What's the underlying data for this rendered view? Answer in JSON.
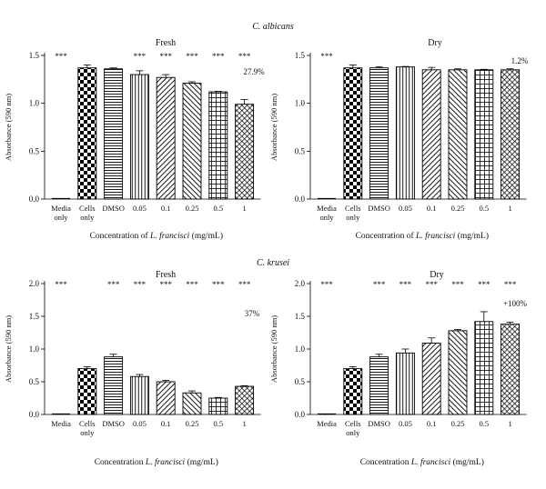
{
  "organisms": [
    {
      "genus": "C.",
      "species": "albicans"
    },
    {
      "genus": "C.",
      "species": "krusei"
    }
  ],
  "chart_data": [
    {
      "type": "bar",
      "organism": "C. albicans",
      "title": "Fresh",
      "ylabel": "Absorbance (590 nm)",
      "xlabel_prefix": "Concentration of ",
      "xlabel_italic": "L. francisci",
      "xlabel_suffix": " (mg/mL)",
      "ylim": [
        0,
        1.5
      ],
      "yticks": [
        "0.0",
        "0.5",
        "1.0",
        "1.5"
      ],
      "ytick_values": [
        0,
        0.5,
        1.0,
        1.5
      ],
      "categories": [
        [
          "Media",
          "only"
        ],
        [
          "Cells",
          "only"
        ],
        [
          "DMSO"
        ],
        [
          "0.05"
        ],
        [
          "0.1"
        ],
        [
          "0.25"
        ],
        [
          "0.5"
        ],
        [
          "1"
        ]
      ],
      "values": [
        0.0,
        1.37,
        1.36,
        1.3,
        1.27,
        1.21,
        1.12,
        0.99
      ],
      "errors": [
        0.005,
        0.03,
        0.01,
        0.04,
        0.03,
        0.015,
        0.005,
        0.05
      ],
      "patterns": [
        "none",
        "checker",
        "hlines",
        "vlines",
        "diag-fwd",
        "diag-bwd",
        "grid",
        "crosshatch"
      ],
      "significance": [
        "***",
        "",
        "",
        "***",
        "***",
        "***",
        "***",
        "***"
      ],
      "annotation": "27.9%"
    },
    {
      "type": "bar",
      "organism": "C. albicans",
      "title": "Dry",
      "ylabel": "Absorbance (590 nm)",
      "xlabel_prefix": "Concentration of ",
      "xlabel_italic": "L. francisci",
      "xlabel_suffix": " (mg/mL)",
      "ylim": [
        0,
        1.5
      ],
      "yticks": [
        "0.0",
        "0.5",
        "1.0",
        "1.5"
      ],
      "ytick_values": [
        0,
        0.5,
        1.0,
        1.5
      ],
      "categories": [
        [
          "Media",
          "only"
        ],
        [
          "Cells",
          "only"
        ],
        [
          "DMSO"
        ],
        [
          "0.05"
        ],
        [
          "0.1"
        ],
        [
          "0.25"
        ],
        [
          "0.5"
        ],
        [
          "1"
        ]
      ],
      "values": [
        0.0,
        1.37,
        1.37,
        1.38,
        1.35,
        1.35,
        1.35,
        1.35
      ],
      "errors": [
        0.005,
        0.03,
        0.01,
        0.005,
        0.025,
        0.01,
        0.005,
        0.01
      ],
      "patterns": [
        "none",
        "checker",
        "hlines",
        "vlines",
        "diag-fwd",
        "diag-bwd",
        "grid",
        "crosshatch"
      ],
      "significance": [
        "***",
        "",
        "",
        "",
        "",
        "",
        "",
        ""
      ],
      "annotation": "1.2%"
    },
    {
      "type": "bar",
      "organism": "C. krusei",
      "title": "Fresh",
      "ylabel": "Absorbance (590 nm)",
      "xlabel_prefix": "Concentration ",
      "xlabel_italic": "L. francisci",
      "xlabel_suffix": " (mg/mL)",
      "ylim": [
        0,
        2.0
      ],
      "yticks": [
        "0.0",
        "0.5",
        "1.0",
        "1.5",
        "2.0"
      ],
      "ytick_values": [
        0,
        0.5,
        1.0,
        1.5,
        2.0
      ],
      "categories": [
        [
          "Media"
        ],
        [
          "Cells",
          "only"
        ],
        [
          "DMSO"
        ],
        [
          "0.05"
        ],
        [
          "0.1"
        ],
        [
          "0.25"
        ],
        [
          "0.5"
        ],
        [
          "1"
        ]
      ],
      "values": [
        0.0,
        0.7,
        0.88,
        0.58,
        0.5,
        0.33,
        0.25,
        0.43
      ],
      "errors": [
        0.005,
        0.03,
        0.04,
        0.03,
        0.02,
        0.03,
        0.01,
        0.01
      ],
      "patterns": [
        "none",
        "checker",
        "hlines",
        "vlines",
        "diag-fwd",
        "diag-bwd",
        "grid",
        "crosshatch"
      ],
      "significance": [
        "***",
        "",
        "***",
        "***",
        "***",
        "***",
        "***",
        "***"
      ],
      "annotation": "37%"
    },
    {
      "type": "bar",
      "organism": "C. krusei",
      "title": "Dry",
      "ylabel": "Absorbance (590 nm)",
      "xlabel_prefix": "Concentration ",
      "xlabel_italic": "L. francisci",
      "xlabel_suffix": " (mg/mL)",
      "ylim": [
        0,
        2.0
      ],
      "yticks": [
        "0.0",
        "0.5",
        "1.0",
        "1.5",
        "2.0"
      ],
      "ytick_values": [
        0,
        0.5,
        1.0,
        1.5,
        2.0
      ],
      "categories": [
        [
          "Media"
        ],
        [
          "Cells",
          "only"
        ],
        [
          "DMSO"
        ],
        [
          "0.05"
        ],
        [
          "0.1"
        ],
        [
          "0.25"
        ],
        [
          "0.5"
        ],
        [
          "1"
        ]
      ],
      "values": [
        0.0,
        0.7,
        0.88,
        0.94,
        1.09,
        1.28,
        1.42,
        1.38
      ],
      "errors": [
        0.005,
        0.03,
        0.04,
        0.06,
        0.08,
        0.02,
        0.15,
        0.03
      ],
      "patterns": [
        "none",
        "checker",
        "hlines",
        "vlines",
        "diag-fwd",
        "diag-bwd",
        "grid",
        "crosshatch"
      ],
      "significance": [
        "***",
        "",
        "***",
        "***",
        "***",
        "***",
        "***",
        "***"
      ],
      "annotation": "+100%"
    }
  ]
}
